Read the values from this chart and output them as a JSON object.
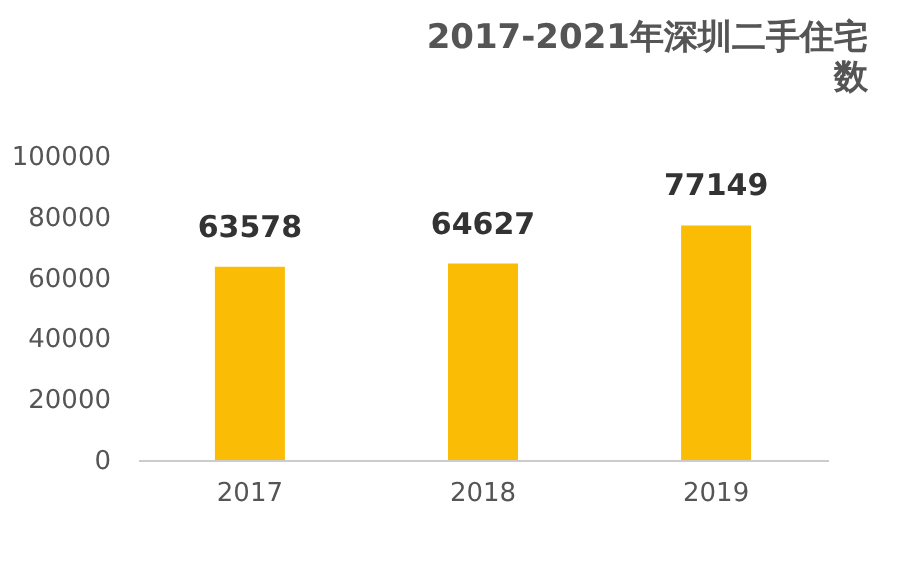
{
  "chart_data": {
    "type": "bar",
    "title": "2017-2021年深圳二手住宅",
    "subtitle": "数",
    "categories": [
      "2017",
      "2018",
      "2019"
    ],
    "values": [
      63578,
      64627,
      77149
    ],
    "color": "#fbbc05",
    "ylim": [
      0,
      100000
    ],
    "yticks": [
      0,
      20000,
      40000,
      60000,
      80000,
      100000
    ],
    "grid": false,
    "data_labels": true
  }
}
